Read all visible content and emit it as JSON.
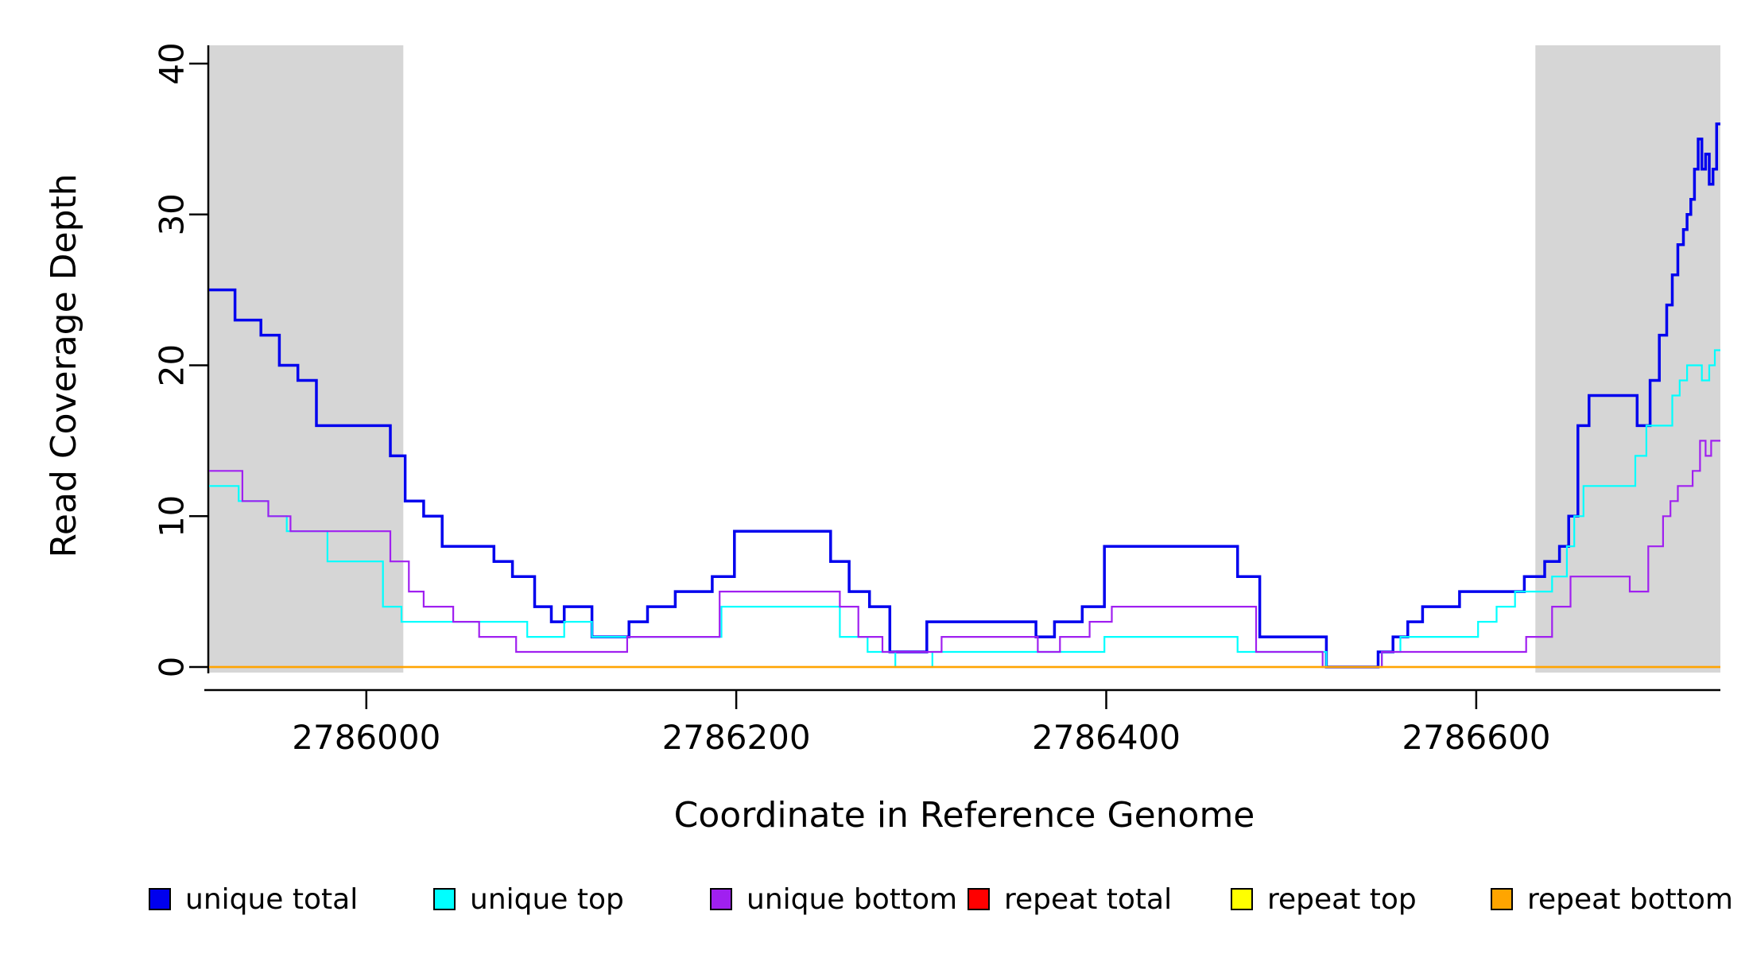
{
  "figure": {
    "background": "#ffffff"
  },
  "chart_data": {
    "type": "line",
    "step": true,
    "title": "",
    "xlabel": "Coordinate in Reference Genome",
    "ylabel": "Read Coverage Depth",
    "xlim": [
      2785915,
      2786732
    ],
    "ylim": [
      0,
      40
    ],
    "xticks": [
      2786000,
      2786200,
      2786400,
      2786600
    ],
    "yticks": [
      0,
      10,
      20,
      30,
      40
    ],
    "grid": false,
    "legend_position": "bottom",
    "shade_color": "#d6d6d6",
    "shaded_regions": [
      {
        "x0": 2785915,
        "x1": 2786020
      },
      {
        "x0": 2786632,
        "x1": 2786732
      }
    ],
    "series": [
      {
        "name": "unique total",
        "color": "#0000EE",
        "linewidth": 3.5,
        "points": [
          [
            2785915,
            25
          ],
          [
            2785929,
            23
          ],
          [
            2785943,
            22
          ],
          [
            2785953,
            20
          ],
          [
            2785963,
            19
          ],
          [
            2785973,
            16
          ],
          [
            2786013,
            14
          ],
          [
            2786021,
            11
          ],
          [
            2786031,
            10
          ],
          [
            2786041,
            8
          ],
          [
            2786069,
            7
          ],
          [
            2786079,
            6
          ],
          [
            2786091,
            4
          ],
          [
            2786100,
            3
          ],
          [
            2786107,
            4
          ],
          [
            2786122,
            2
          ],
          [
            2786142,
            3
          ],
          [
            2786152,
            4
          ],
          [
            2786167,
            5
          ],
          [
            2786187,
            6
          ],
          [
            2786199,
            9
          ],
          [
            2786251,
            7
          ],
          [
            2786261,
            5
          ],
          [
            2786272,
            4
          ],
          [
            2786283,
            1
          ],
          [
            2786303,
            3
          ],
          [
            2786362,
            2
          ],
          [
            2786372,
            3
          ],
          [
            2786387,
            4
          ],
          [
            2786399,
            8
          ],
          [
            2786471,
            6
          ],
          [
            2786483,
            2
          ],
          [
            2786519,
            0
          ],
          [
            2786547,
            1
          ],
          [
            2786555,
            2
          ],
          [
            2786563,
            3
          ],
          [
            2786571,
            4
          ],
          [
            2786591,
            5
          ],
          [
            2786626,
            6
          ],
          [
            2786637,
            7
          ],
          [
            2786645,
            8
          ],
          [
            2786650,
            10
          ],
          [
            2786655,
            16
          ],
          [
            2786661,
            18
          ],
          [
            2786687,
            16
          ],
          [
            2786694,
            19
          ],
          [
            2786699,
            22
          ],
          [
            2786703,
            24
          ],
          [
            2786706,
            26
          ],
          [
            2786709,
            28
          ],
          [
            2786712,
            29
          ],
          [
            2786714,
            30
          ],
          [
            2786716,
            31
          ],
          [
            2786718,
            33
          ],
          [
            2786720,
            35
          ],
          [
            2786722,
            33
          ],
          [
            2786724,
            34
          ],
          [
            2786726,
            32
          ],
          [
            2786728,
            33
          ],
          [
            2786730,
            36
          ]
        ]
      },
      {
        "name": "unique top",
        "color": "#00FFFF",
        "linewidth": 2.2,
        "points": [
          [
            2785915,
            12
          ],
          [
            2785931,
            11
          ],
          [
            2785947,
            10
          ],
          [
            2785957,
            9
          ],
          [
            2785979,
            7
          ],
          [
            2786009,
            4
          ],
          [
            2786019,
            3
          ],
          [
            2786087,
            2
          ],
          [
            2786107,
            3
          ],
          [
            2786122,
            2
          ],
          [
            2786192,
            4
          ],
          [
            2786256,
            2
          ],
          [
            2786271,
            1
          ],
          [
            2786286,
            0
          ],
          [
            2786306,
            1
          ],
          [
            2786399,
            2
          ],
          [
            2786471,
            1
          ],
          [
            2786519,
            0
          ],
          [
            2786549,
            1
          ],
          [
            2786559,
            2
          ],
          [
            2786601,
            3
          ],
          [
            2786611,
            4
          ],
          [
            2786621,
            5
          ],
          [
            2786641,
            6
          ],
          [
            2786649,
            8
          ],
          [
            2786653,
            10
          ],
          [
            2786658,
            12
          ],
          [
            2786686,
            14
          ],
          [
            2786692,
            16
          ],
          [
            2786706,
            18
          ],
          [
            2786710,
            19
          ],
          [
            2786714,
            20
          ],
          [
            2786722,
            19
          ],
          [
            2786726,
            20
          ],
          [
            2786729,
            21
          ]
        ]
      },
      {
        "name": "unique bottom",
        "color": "#A020F0",
        "linewidth": 2.2,
        "points": [
          [
            2785915,
            13
          ],
          [
            2785933,
            11
          ],
          [
            2785947,
            10
          ],
          [
            2785959,
            9
          ],
          [
            2786013,
            7
          ],
          [
            2786023,
            5
          ],
          [
            2786031,
            4
          ],
          [
            2786047,
            3
          ],
          [
            2786061,
            2
          ],
          [
            2786081,
            1
          ],
          [
            2786141,
            2
          ],
          [
            2786191,
            5
          ],
          [
            2786256,
            4
          ],
          [
            2786266,
            2
          ],
          [
            2786279,
            1
          ],
          [
            2786311,
            2
          ],
          [
            2786363,
            1
          ],
          [
            2786375,
            2
          ],
          [
            2786391,
            3
          ],
          [
            2786403,
            4
          ],
          [
            2786481,
            1
          ],
          [
            2786517,
            0
          ],
          [
            2786549,
            1
          ],
          [
            2786627,
            2
          ],
          [
            2786641,
            4
          ],
          [
            2786651,
            6
          ],
          [
            2786683,
            5
          ],
          [
            2786693,
            8
          ],
          [
            2786701,
            10
          ],
          [
            2786705,
            11
          ],
          [
            2786709,
            12
          ],
          [
            2786717,
            13
          ],
          [
            2786721,
            15
          ],
          [
            2786724,
            14
          ],
          [
            2786727,
            15
          ]
        ]
      },
      {
        "name": "repeat total",
        "color": "#FF0000",
        "linewidth": 2.2,
        "points": [
          [
            2785915,
            0
          ]
        ]
      },
      {
        "name": "repeat top",
        "color": "#FFFF00",
        "linewidth": 2.2,
        "points": [
          [
            2785915,
            0
          ]
        ]
      },
      {
        "name": "repeat bottom",
        "color": "#FFA500",
        "linewidth": 2.2,
        "points": [
          [
            2785915,
            0
          ]
        ]
      }
    ]
  }
}
